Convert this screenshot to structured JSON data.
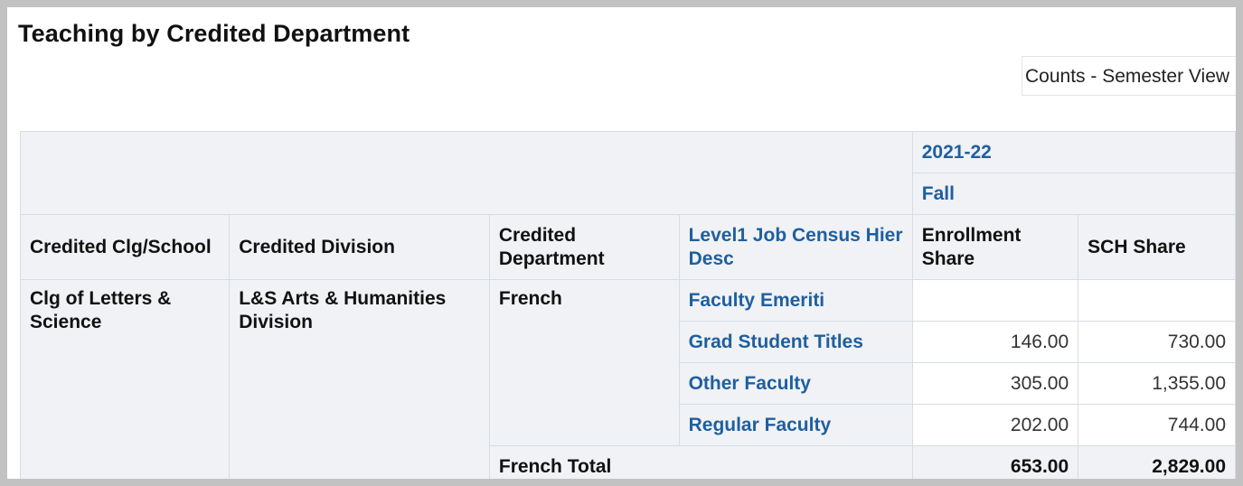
{
  "report": {
    "title": "Teaching by Credited Department",
    "view_selector": "Counts - Semester View"
  },
  "pivot": {
    "year": "2021-22",
    "term": "Fall",
    "columns": {
      "school": "Credited Clg/School",
      "division": "Credited Division",
      "department": "Credited Department",
      "job": "Level1 Job Census Hier Desc",
      "enrollment": "Enrollment Share",
      "sch": "SCH Share"
    },
    "row": {
      "school": "Clg of Letters & Science",
      "division": "L&S Arts & Humanities Division",
      "department": "French"
    },
    "rows": [
      {
        "job": "Faculty Emeriti",
        "enrollment": "",
        "sch": ""
      },
      {
        "job": "Grad Student Titles",
        "enrollment": "146.00",
        "sch": "730.00"
      },
      {
        "job": "Other Faculty",
        "enrollment": "305.00",
        "sch": "1,355.00"
      },
      {
        "job": "Regular Faculty",
        "enrollment": "202.00",
        "sch": "744.00"
      }
    ],
    "total": {
      "label": "French Total",
      "enrollment": "653.00",
      "sch": "2,829.00"
    }
  }
}
